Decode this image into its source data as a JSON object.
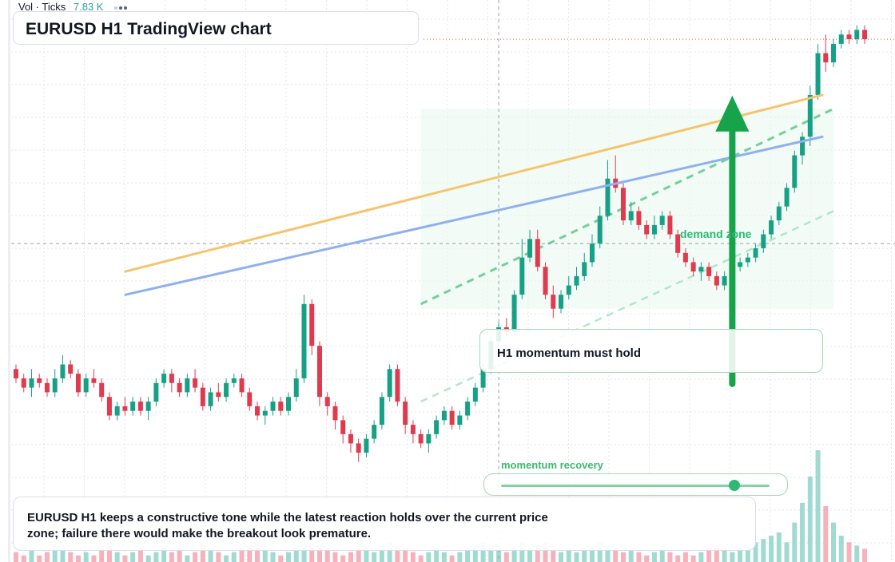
{
  "volume_legend": {
    "label": "Vol · Ticks",
    "value": "7.83 K"
  },
  "header": {
    "title": "EURUSD H1 TradingView chart"
  },
  "annotations": {
    "callout": "H1 momentum must hold",
    "zone_label": "demand zone",
    "momentum_label": "momentum recovery",
    "momentum_level": 0.87,
    "summary": "EURUSD H1 keeps a constructive tone while the latest reaction holds over the current price zone; failure there would make the breakout look premature."
  },
  "colors": {
    "up": "#26a69a",
    "down": "#ef5350",
    "up_bar": "#16a085",
    "down_bar": "#e03a4e",
    "blue_line": "#8fb0ee",
    "orange_line": "#f5c46b",
    "arrow": "#16a34a",
    "zone": "#e9f8ee"
  },
  "chart_data": {
    "type": "candlestick",
    "symbol": "EURUSD",
    "timeframe": "H1",
    "y_range": [
      0,
      100
    ],
    "x_range": [
      0,
      110
    ],
    "current_price": 95,
    "crosshair": {
      "bar": 62,
      "price": 51
    },
    "candles": [
      [
        0,
        24,
        22,
        25,
        21
      ],
      [
        1,
        22,
        20,
        23,
        19
      ],
      [
        2,
        20,
        22,
        24,
        18
      ],
      [
        3,
        22,
        21,
        23,
        20
      ],
      [
        4,
        21,
        19,
        22,
        18
      ],
      [
        5,
        19,
        22,
        24,
        18
      ],
      [
        6,
        22,
        25,
        27,
        21
      ],
      [
        7,
        25,
        23,
        26,
        22
      ],
      [
        8,
        23,
        19,
        24,
        18
      ],
      [
        9,
        19,
        22,
        23,
        18
      ],
      [
        10,
        22,
        21,
        24,
        20
      ],
      [
        11,
        21,
        18,
        22,
        17
      ],
      [
        12,
        18,
        14,
        19,
        13
      ],
      [
        13,
        14,
        16,
        17,
        13
      ],
      [
        14,
        16,
        15,
        18,
        14
      ],
      [
        15,
        15,
        17,
        18,
        14
      ],
      [
        16,
        17,
        15,
        18,
        14
      ],
      [
        17,
        15,
        17,
        18,
        13
      ],
      [
        18,
        17,
        21,
        22,
        16
      ],
      [
        19,
        21,
        23,
        24,
        20
      ],
      [
        20,
        23,
        21,
        24,
        19
      ],
      [
        21,
        21,
        19,
        22,
        18
      ],
      [
        22,
        19,
        22,
        23,
        18
      ],
      [
        23,
        22,
        20,
        24,
        19
      ],
      [
        24,
        20,
        16,
        21,
        15
      ],
      [
        25,
        16,
        19,
        20,
        15
      ],
      [
        26,
        19,
        18,
        21,
        17
      ],
      [
        27,
        18,
        21,
        22,
        17
      ],
      [
        28,
        21,
        22,
        23,
        20
      ],
      [
        29,
        22,
        19,
        23,
        18
      ],
      [
        30,
        19,
        16,
        20,
        15
      ],
      [
        31,
        16,
        14,
        17,
        13
      ],
      [
        32,
        14,
        15,
        16,
        12
      ],
      [
        33,
        15,
        17,
        18,
        14
      ],
      [
        34,
        17,
        15,
        18,
        14
      ],
      [
        35,
        15,
        18,
        19,
        14
      ],
      [
        36,
        18,
        22,
        24,
        17
      ],
      [
        37,
        22,
        38,
        40,
        21
      ],
      [
        38,
        38,
        29,
        39,
        27
      ],
      [
        39,
        29,
        18,
        30,
        16
      ],
      [
        40,
        18,
        16,
        19,
        14
      ],
      [
        41,
        16,
        13,
        17,
        11
      ],
      [
        42,
        13,
        10,
        14,
        8
      ],
      [
        43,
        10,
        8,
        11,
        6
      ],
      [
        44,
        8,
        6,
        9,
        4
      ],
      [
        45,
        6,
        9,
        10,
        5
      ],
      [
        46,
        9,
        12,
        13,
        8
      ],
      [
        47,
        12,
        18,
        19,
        11
      ],
      [
        48,
        18,
        24,
        25,
        17
      ],
      [
        49,
        24,
        17,
        25,
        16
      ],
      [
        50,
        17,
        12,
        18,
        10
      ],
      [
        51,
        12,
        10,
        13,
        8
      ],
      [
        52,
        10,
        8,
        11,
        7
      ],
      [
        53,
        8,
        10,
        11,
        6
      ],
      [
        54,
        10,
        13,
        14,
        9
      ],
      [
        55,
        13,
        15,
        16,
        12
      ],
      [
        56,
        15,
        12,
        16,
        11
      ],
      [
        57,
        12,
        14,
        15,
        11
      ],
      [
        58,
        14,
        17,
        18,
        13
      ],
      [
        59,
        17,
        20,
        21,
        16
      ],
      [
        60,
        20,
        24,
        25,
        19
      ],
      [
        61,
        24,
        30,
        31,
        23
      ],
      [
        62,
        30,
        33,
        34,
        29
      ],
      [
        63,
        33,
        32,
        35,
        31
      ],
      [
        64,
        32,
        40,
        41,
        31
      ],
      [
        65,
        40,
        48,
        52,
        39
      ],
      [
        66,
        48,
        52,
        54,
        47
      ],
      [
        67,
        52,
        46,
        54,
        45
      ],
      [
        68,
        46,
        40,
        47,
        39
      ],
      [
        69,
        40,
        37,
        42,
        35
      ],
      [
        70,
        37,
        40,
        41,
        36
      ],
      [
        71,
        40,
        42,
        44,
        39
      ],
      [
        72,
        42,
        44,
        46,
        41
      ],
      [
        73,
        44,
        47,
        49,
        43
      ],
      [
        74,
        47,
        51,
        53,
        46
      ],
      [
        75,
        51,
        57,
        59,
        50
      ],
      [
        76,
        57,
        65,
        69,
        56
      ],
      [
        77,
        65,
        63,
        70,
        62
      ],
      [
        78,
        63,
        56,
        64,
        55
      ],
      [
        79,
        56,
        58,
        60,
        55
      ],
      [
        80,
        58,
        55,
        59,
        54
      ],
      [
        81,
        55,
        53,
        56,
        52
      ],
      [
        82,
        53,
        55,
        57,
        52
      ],
      [
        83,
        55,
        57,
        58,
        54
      ],
      [
        84,
        57,
        53,
        58,
        52
      ],
      [
        85,
        53,
        49,
        54,
        48
      ],
      [
        86,
        49,
        47,
        50,
        46
      ],
      [
        87,
        47,
        45,
        48,
        44
      ],
      [
        88,
        45,
        46,
        47,
        43
      ],
      [
        89,
        46,
        44,
        47,
        43
      ],
      [
        90,
        44,
        42,
        45,
        41
      ],
      [
        91,
        42,
        44,
        45,
        41
      ],
      [
        92,
        44,
        46,
        47,
        43
      ],
      [
        93,
        46,
        47,
        48,
        45
      ],
      [
        94,
        47,
        48,
        49,
        46
      ],
      [
        95,
        48,
        50,
        51,
        47
      ],
      [
        96,
        50,
        53,
        54,
        49
      ],
      [
        97,
        53,
        56,
        57,
        52
      ],
      [
        98,
        56,
        59,
        60,
        55
      ],
      [
        99,
        59,
        63,
        64,
        58
      ],
      [
        100,
        63,
        70,
        71,
        62
      ],
      [
        101,
        70,
        74,
        75,
        68
      ],
      [
        102,
        74,
        83,
        85,
        72
      ],
      [
        103,
        83,
        92,
        94,
        82
      ],
      [
        104,
        92,
        90,
        96,
        88
      ],
      [
        105,
        90,
        94,
        95,
        89
      ],
      [
        106,
        94,
        96,
        97,
        93
      ],
      [
        107,
        96,
        95,
        97,
        94
      ],
      [
        108,
        95,
        97,
        98,
        94
      ],
      [
        109,
        97,
        95,
        98,
        94
      ]
    ],
    "volume": [
      3,
      2,
      4,
      2,
      3,
      5,
      4,
      3,
      2,
      3,
      2,
      4,
      6,
      3,
      2,
      3,
      4,
      2,
      3,
      5,
      3,
      4,
      2,
      3,
      6,
      4,
      3,
      2,
      3,
      4,
      5,
      6,
      4,
      3,
      2,
      3,
      5,
      8,
      6,
      5,
      4,
      3,
      2,
      3,
      4,
      5,
      3,
      4,
      6,
      5,
      4,
      3,
      2,
      3,
      4,
      3,
      2,
      3,
      4,
      5,
      6,
      5,
      4,
      3,
      5,
      6,
      4,
      5,
      6,
      4,
      3,
      4,
      3,
      4,
      5,
      6,
      5,
      4,
      3,
      4,
      3,
      2,
      3,
      4,
      3,
      2,
      3,
      2,
      3,
      4,
      5,
      4,
      3,
      4,
      5,
      6,
      7,
      8,
      9,
      6,
      12,
      18,
      26,
      34,
      17,
      12,
      8,
      6,
      5,
      4
    ],
    "lines": [
      {
        "name": "blue",
        "from": [
          0,
          40
        ],
        "to": [
          105,
          74
        ]
      },
      {
        "name": "orange",
        "from": [
          0,
          45
        ],
        "to": [
          105,
          83
        ]
      }
    ],
    "dashed_lines": [
      {
        "from": [
          52,
          38
        ],
        "to": [
          105,
          80
        ]
      },
      {
        "from": [
          52,
          17
        ],
        "to": [
          105,
          58
        ]
      }
    ],
    "zone": {
      "x": [
        52,
        105
      ],
      "y": [
        37,
        80
      ]
    },
    "arrow": {
      "x": 92,
      "from": 38,
      "to": 82
    }
  }
}
